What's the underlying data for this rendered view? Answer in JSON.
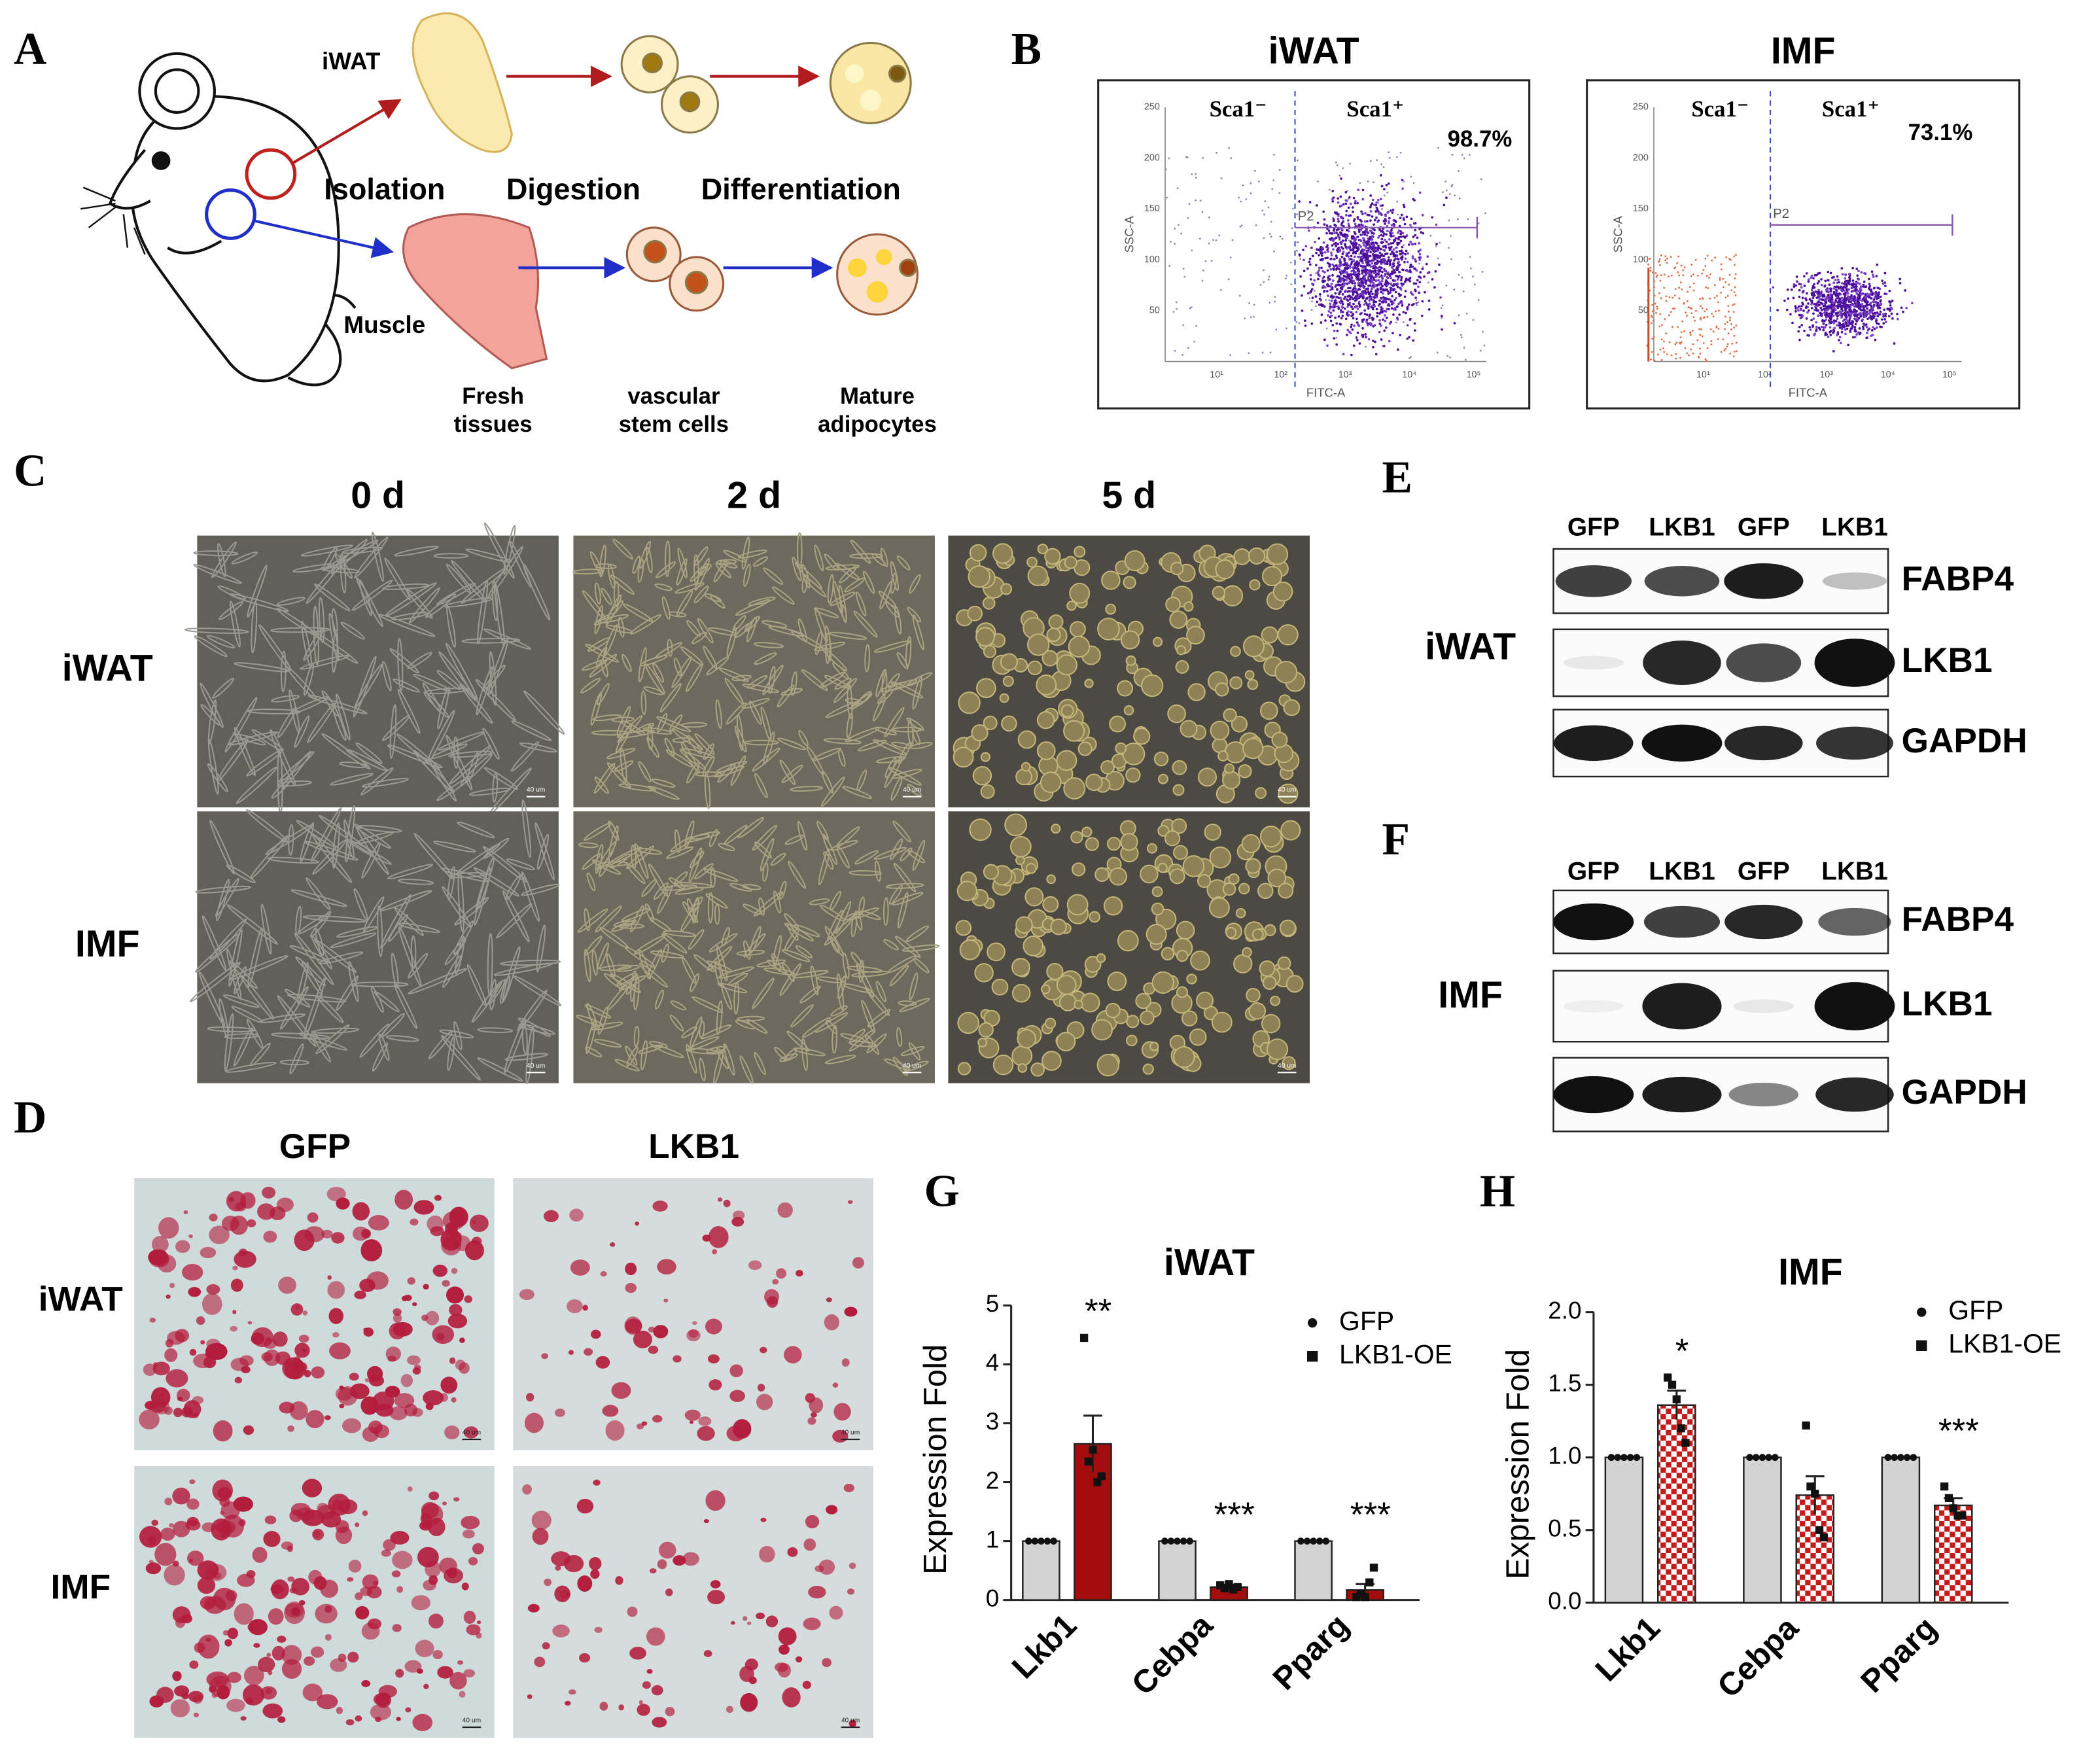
{
  "panel_labels": [
    "A",
    "B",
    "C",
    "D",
    "E",
    "F",
    "G",
    "H"
  ],
  "A": {
    "tissues": [
      "iWAT",
      "Muscle"
    ],
    "steps": [
      "Isolation",
      "Digestion",
      "Differentiation"
    ],
    "stages": [
      [
        "Fresh",
        "tissues"
      ],
      [
        "vascular",
        "stem cells"
      ],
      [
        "Mature",
        "adipocytes"
      ]
    ]
  },
  "B": {
    "plots": [
      {
        "title": "iWAT",
        "gate_neg": "Sca1⁻",
        "gate_pos": "Sca1⁺",
        "percent": "98.7%",
        "gate": "P2",
        "x_label": "FITC-A",
        "y_label": "SSC-A",
        "y_ticks": [
          "50",
          "100",
          "150",
          "200",
          "250"
        ],
        "x_ticks": [
          "10¹",
          "10²",
          "10³",
          "10⁴",
          "10⁵"
        ]
      },
      {
        "title": "IMF",
        "gate_neg": "Sca1⁻",
        "gate_pos": "Sca1⁺",
        "percent": "73.1%",
        "gate": "P2",
        "x_label": "FITC-A",
        "y_label": "SSC-A",
        "y_ticks": [
          "50",
          "100",
          "150",
          "200",
          "250"
        ],
        "x_ticks": [
          "10¹",
          "10²",
          "10³",
          "10⁴",
          "10⁵"
        ]
      }
    ]
  },
  "C": {
    "columns": [
      "0 d",
      "2 d",
      "5 d"
    ],
    "rows": [
      "iWAT",
      "IMF"
    ],
    "scale_bar": "40 um"
  },
  "D": {
    "columns": [
      "GFP",
      "LKB1"
    ],
    "rows": [
      "iWAT",
      "IMF"
    ],
    "scale_bar": "40 um"
  },
  "E": {
    "lanes": [
      "GFP",
      "LKB1",
      "GFP",
      "LKB1"
    ],
    "tissue": "iWAT",
    "proteins": [
      "FABP4",
      "LKB1",
      "GAPDH"
    ]
  },
  "F": {
    "lanes": [
      "GFP",
      "LKB1",
      "GFP",
      "LKB1"
    ],
    "tissue": "IMF",
    "proteins": [
      "FABP4",
      "LKB1",
      "GAPDH"
    ]
  },
  "chart_data": [
    {
      "type": "bar",
      "title": "iWAT",
      "y_label": "Expression Fold",
      "categories": [
        "Lkb1",
        "Cebpa",
        "Pparg"
      ],
      "series": [
        {
          "name": "GFP",
          "color": "#d3d3d3",
          "marker": "circle",
          "values": [
            1,
            1,
            1
          ],
          "errors": [
            0,
            0,
            0
          ],
          "points": [
            [
              1,
              1,
              1,
              1,
              1
            ],
            [
              1,
              1,
              1,
              1,
              1
            ],
            [
              1,
              1,
              1,
              1,
              1
            ]
          ]
        },
        {
          "name": "LKB1-OE",
          "color": "#a30d0d",
          "marker": "square",
          "values": [
            2.65,
            0.22,
            0.17
          ],
          "errors": [
            0.48,
            0.04,
            0.1
          ],
          "points": [
            [
              4.45,
              2.35,
              2.55,
              2.0,
              2.1
            ],
            [
              0.25,
              0.2,
              0.27,
              0.18,
              0.22
            ],
            [
              0.05,
              0.1,
              0.05,
              0.3,
              0.55
            ]
          ]
        }
      ],
      "annotations": [
        {
          "category": "Lkb1",
          "text": "**"
        },
        {
          "category": "Cebpa",
          "text": "***"
        },
        {
          "category": "Pparg",
          "text": "***"
        }
      ],
      "ylim": [
        0,
        5
      ],
      "yticks": [
        0,
        1,
        2,
        3,
        4,
        5
      ]
    },
    {
      "type": "bar",
      "title": "IMF",
      "y_label": "Expression Fold",
      "categories": [
        "Lkb1",
        "Cebpa",
        "Pparg"
      ],
      "series": [
        {
          "name": "GFP",
          "color": "#d3d3d3",
          "marker": "circle",
          "values": [
            1,
            1,
            1
          ],
          "errors": [
            0,
            0,
            0
          ],
          "points": [
            [
              1,
              1,
              1,
              1,
              1
            ],
            [
              1,
              1,
              1,
              1,
              1
            ],
            [
              1,
              1,
              1,
              1,
              1
            ]
          ]
        },
        {
          "name": "LKB1-OE",
          "color": "#c41a1a",
          "pattern": "checker",
          "marker": "square",
          "values": [
            1.36,
            0.74,
            0.67
          ],
          "errors": [
            0.1,
            0.13,
            0.05
          ],
          "points": [
            [
              1.55,
              1.5,
              1.4,
              1.2,
              1.1
            ],
            [
              1.22,
              0.8,
              0.75,
              0.5,
              0.45
            ],
            [
              0.8,
              0.72,
              0.65,
              0.6,
              0.6
            ]
          ]
        }
      ],
      "annotations": [
        {
          "category": "Lkb1",
          "text": "*"
        },
        {
          "category": "Pparg",
          "text": "***"
        }
      ],
      "ylim": [
        0,
        2.0
      ],
      "yticks": [
        {
          "value": 0,
          "label": "0.0"
        },
        {
          "value": 0.5,
          "label": "0.5"
        },
        {
          "value": 1,
          "label": "1.0"
        },
        {
          "value": 1.5,
          "label": "1.5"
        },
        {
          "value": 2,
          "label": "2.0"
        }
      ]
    }
  ]
}
